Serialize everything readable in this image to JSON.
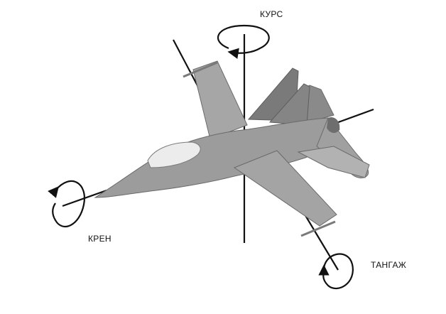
{
  "labels": {
    "yaw": "КУРС",
    "roll": "КРЕН",
    "pitch": "ТАНГАЖ"
  },
  "colors": {
    "background": "#ffffff",
    "axis": "#111111",
    "fuselage": "#9a9a9a",
    "wing": "#a8a8a8",
    "tail": "#808080",
    "canopy": "#eeeeee",
    "outline": "#6a6a6a"
  }
}
